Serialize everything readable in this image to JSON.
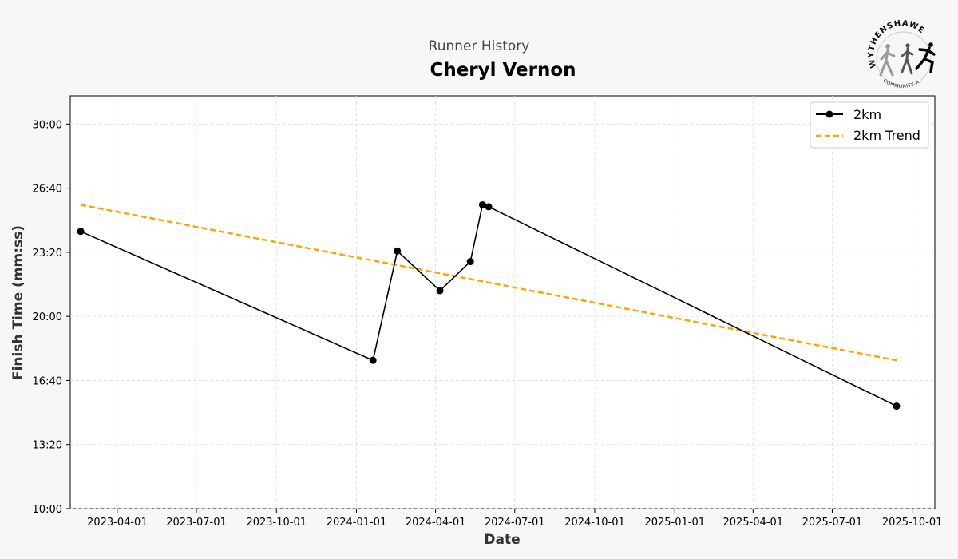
{
  "header": {
    "subtitle": "Runner History",
    "title": "Cheryl Vernon"
  },
  "logo": {
    "name": "WYTHENSHAWE",
    "tagline": "COMMUNITY RUN",
    "icon": "runners-logo-icon"
  },
  "colors": {
    "series_main": "#000000",
    "series_trend": "#FFA500",
    "grid": "#dddddd",
    "background": "#f7f7f7"
  },
  "chart_data": {
    "type": "line",
    "xlabel": "Date",
    "ylabel": "Finish Time (mm:ss)",
    "x_axis": {
      "type": "date",
      "range": [
        "2023-02-06",
        "2025-10-27"
      ],
      "ticks": [
        "2023-04-01",
        "2023-07-01",
        "2023-10-01",
        "2024-01-01",
        "2024-04-01",
        "2024-07-01",
        "2024-10-01",
        "2025-01-01",
        "2025-04-01",
        "2025-07-01",
        "2025-10-01"
      ]
    },
    "y_axis": {
      "unit": "mm:ss",
      "range": [
        "10:00",
        "31:28"
      ],
      "ticks": [
        "10:00",
        "13:20",
        "16:40",
        "20:00",
        "23:20",
        "26:40",
        "30:00"
      ]
    },
    "grid": true,
    "legend_position": "top-right",
    "series": [
      {
        "name": "2km",
        "style": "solid-with-markers",
        "points": [
          {
            "x": "2023-02-18",
            "y": "24:25"
          },
          {
            "x": "2024-01-20",
            "y": "17:43"
          },
          {
            "x": "2024-02-17",
            "y": "23:24"
          },
          {
            "x": "2024-04-06",
            "y": "21:20"
          },
          {
            "x": "2024-05-11",
            "y": "22:51"
          },
          {
            "x": "2024-05-25",
            "y": "25:48"
          },
          {
            "x": "2024-06-01",
            "y": "25:42"
          },
          {
            "x": "2025-09-13",
            "y": "15:20"
          }
        ]
      },
      {
        "name": "2km Trend",
        "style": "dashed",
        "points": [
          {
            "x": "2023-02-18",
            "y": "25:48"
          },
          {
            "x": "2025-09-13",
            "y": "17:43"
          }
        ]
      }
    ]
  }
}
